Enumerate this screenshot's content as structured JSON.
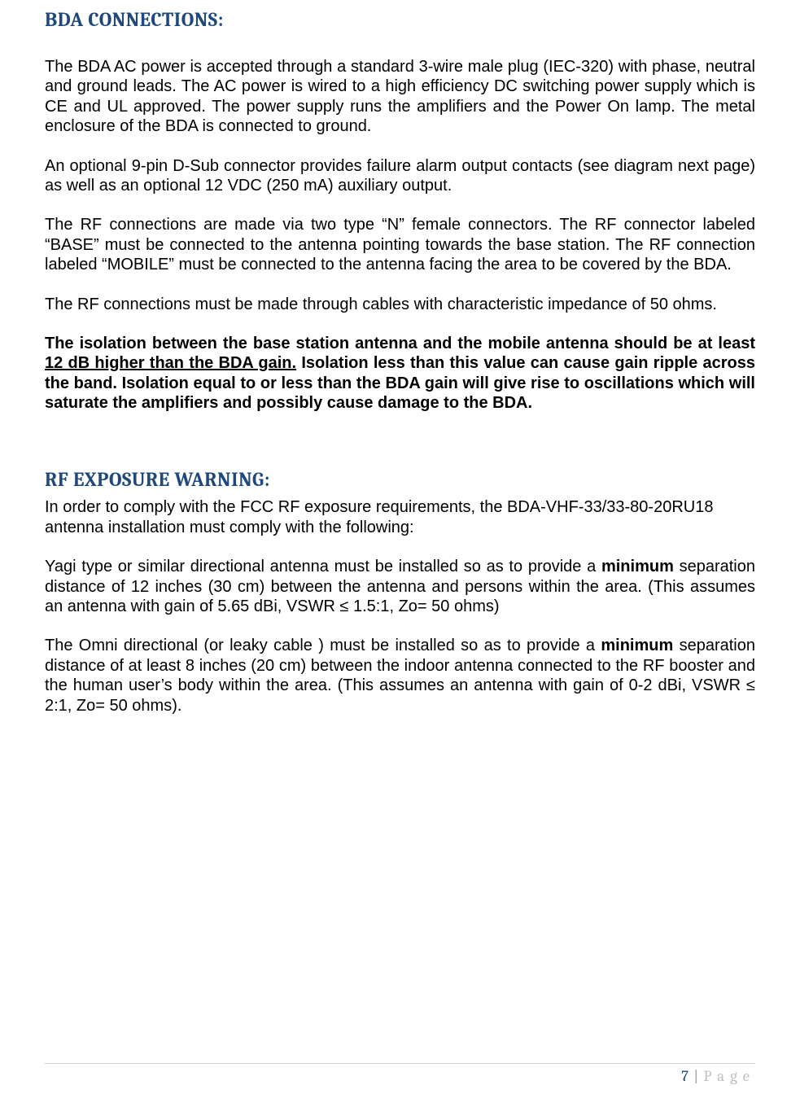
{
  "heading1": "BDA CONNECTIONS:",
  "para1": "The BDA AC power is accepted through a standard 3-wire male plug (IEC-320) with phase, neutral and ground leads. The AC power is wired to a high efficiency DC switching power supply which is CE and UL approved. The power supply runs the amplifiers and the Power On lamp. The metal enclosure of the BDA is connected to ground.",
  "para2": "An optional 9-pin D-Sub connector provides failure alarm output contacts (see diagram next page) as well as an optional 12 VDC (250 mA) auxiliary output.",
  "para3": "The RF connections are made via two type “N” female connectors. The RF connector labeled “BASE” must be connected to the antenna pointing towards the base station. The RF connection labeled “MOBILE” must be connected to the antenna facing the area to be covered by the BDA.",
  "para4": "The RF connections must be made through cables with characteristic impedance of 50 ohms.",
  "para5_a": "The isolation between the base station antenna and the mobile antenna should be at least ",
  "para5_u": "12 dB higher than the BDA gain.",
  "para5_b": " Isolation less than this value can cause gain ripple across the band. Isolation equal to or less than the BDA gain will give rise to oscillations which will saturate the amplifiers and possibly cause damage to the BDA.",
  "heading2": "RF EXPOSURE WARNING:",
  "para6": "In order to comply with the FCC RF exposure requirements, the BDA-VHF-33/33-80-20RU18 antenna installation must comply with the following:",
  "para7_a": "Yagi type or similar directional antenna must be installed so as to provide a ",
  "para7_bold": "minimum",
  "para7_b": " separation distance of 12 inches (30 cm) between the antenna and persons within the area. (This assumes an antenna with gain of 5.65 dBi, VSWR ≤ 1.5:1, Zo= 50 ohms)",
  "para8_a": "The Omni directional (or leaky cable ) must be installed so as to provide a ",
  "para8_bold": "minimum",
  "para8_b": " separation distance of at least 8 inches (20 cm) between the indoor antenna connected to the RF booster and the human user’s body within the area. (This assumes an antenna with gain of 0-2 dBi, VSWR ≤ 2:1, Zo= 50 ohms).",
  "footer": {
    "page_num": "7",
    "sep": "|",
    "label": "Page"
  },
  "colors": {
    "heading": "#1f497d",
    "body": "#000000",
    "footer_num": "#1f497d",
    "footer_label": "#bfbfbf",
    "rule": "#d0d0d0"
  }
}
